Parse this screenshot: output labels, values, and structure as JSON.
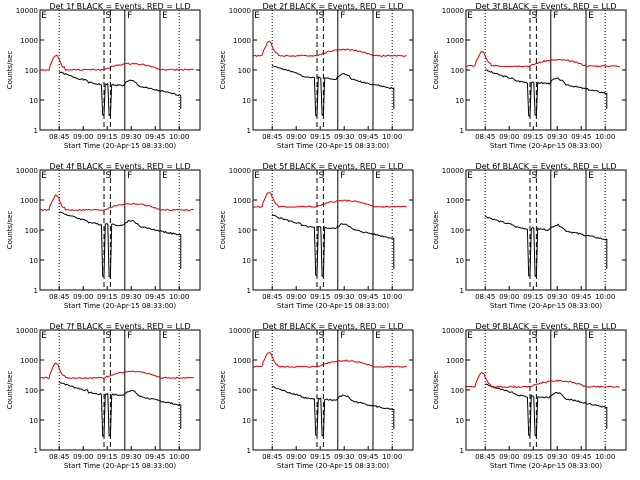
{
  "chart_data": [
    {
      "type": "line",
      "title": "Det 1f BLACK = Events, RED = LLD",
      "ylabel": "Counts/sec",
      "xlabel": "Start Time (20-Apr-15 08:33:00)",
      "events_start": 60,
      "lld_start": 120,
      "markers": {
        "S": "S",
        "F": "F",
        "E": "E"
      },
      "x_ticks": [
        "08:45",
        "09:00",
        "09:15",
        "09:30",
        "09:45",
        "10:00"
      ]
    },
    {
      "type": "line",
      "title": "Det 2f BLACK = Events, RED = LLD",
      "ylabel": "Counts/sec",
      "xlabel": "Start Time (20-Apr-15 08:33:00)",
      "events_start": 100,
      "lld_start": 350,
      "markers": {
        "S": "S",
        "F": "F",
        "E": "E"
      },
      "x_ticks": [
        "08:45",
        "09:00",
        "09:15",
        "09:30",
        "09:45",
        "10:00"
      ]
    },
    {
      "type": "line",
      "title": "Det 3f BLACK = Events, RED = LLD",
      "ylabel": "Counts/sec",
      "xlabel": "Start Time (20-Apr-15 08:33:00)",
      "events_start": 70,
      "lld_start": 160,
      "markers": {
        "S": "S",
        "F": "F",
        "E": "E"
      },
      "x_ticks": [
        "08:45",
        "09:00",
        "09:15",
        "09:30",
        "09:45",
        "10:00"
      ]
    },
    {
      "type": "line",
      "title": "Det 4f BLACK = Events, RED = LLD",
      "ylabel": "Counts/sec",
      "xlabel": "Start Time (20-Apr-15 08:33:00)",
      "events_start": 280,
      "lld_start": 550,
      "markers": {
        "S": "S",
        "F": "F",
        "E": "E"
      },
      "x_ticks": [
        "08:45",
        "09:00",
        "09:15",
        "09:30",
        "09:45",
        "10:00"
      ]
    },
    {
      "type": "line",
      "title": "Det 5f BLACK = Events, RED = LLD",
      "ylabel": "Counts/sec",
      "xlabel": "Start Time (20-Apr-15 08:33:00)",
      "events_start": 220,
      "lld_start": 700,
      "markers": {
        "S": "S",
        "F": "F",
        "E": "E"
      },
      "x_ticks": [
        "08:45",
        "09:00",
        "09:15",
        "09:30",
        "09:45",
        "10:00"
      ]
    },
    {
      "type": "line",
      "title": "Det 6f BLACK = Events, RED = LLD",
      "ylabel": "Counts/sec",
      "xlabel": "Start Time (20-Apr-15 08:33:00)",
      "events_start": 200,
      "lld_start": null,
      "markers": {
        "S": "S",
        "F": "F",
        "E": "E"
      },
      "x_ticks": [
        "08:45",
        "09:00",
        "09:15",
        "09:30",
        "09:45",
        "10:00"
      ]
    },
    {
      "type": "line",
      "title": "Det 7f BLACK = Events, RED = LLD",
      "ylabel": "Counts/sec",
      "xlabel": "Start Time (20-Apr-15 08:33:00)",
      "events_start": 130,
      "lld_start": 300,
      "markers": {
        "S": "S",
        "F": "F",
        "E": "E"
      },
      "x_ticks": [
        "08:45",
        "09:00",
        "09:15",
        "09:30",
        "09:45",
        "10:00"
      ]
    },
    {
      "type": "line",
      "title": "Det 8f BLACK = Events, RED = LLD",
      "ylabel": "Counts/sec",
      "xlabel": "Start Time (20-Apr-15 08:33:00)",
      "events_start": 90,
      "lld_start": 700,
      "markers": {
        "S": "S",
        "F": "F",
        "E": "E"
      },
      "x_ticks": [
        "08:45",
        "09:00",
        "09:15",
        "09:30",
        "09:45",
        "10:00"
      ]
    },
    {
      "type": "line",
      "title": "Det 9f BLACK = Events, RED = LLD",
      "ylabel": "Counts/sec",
      "xlabel": "Start Time (20-Apr-15 08:33:00)",
      "events_start": 110,
      "lld_start": 150,
      "markers": {
        "S": "S",
        "F": "F",
        "E": "E"
      },
      "x_ticks": [
        "08:45",
        "09:00",
        "09:15",
        "09:30",
        "09:45",
        "10:00"
      ]
    }
  ],
  "y_ticks": [
    "1",
    "10",
    "100",
    "1000",
    "10000"
  ],
  "y_range": [
    1,
    10000
  ],
  "x_range_minutes": [
    0,
    100
  ],
  "x_tick_minutes": [
    12,
    27,
    42,
    57,
    72,
    87
  ],
  "colors": {
    "events": "#000000",
    "lld": "#e00000",
    "axis": "#000000"
  }
}
